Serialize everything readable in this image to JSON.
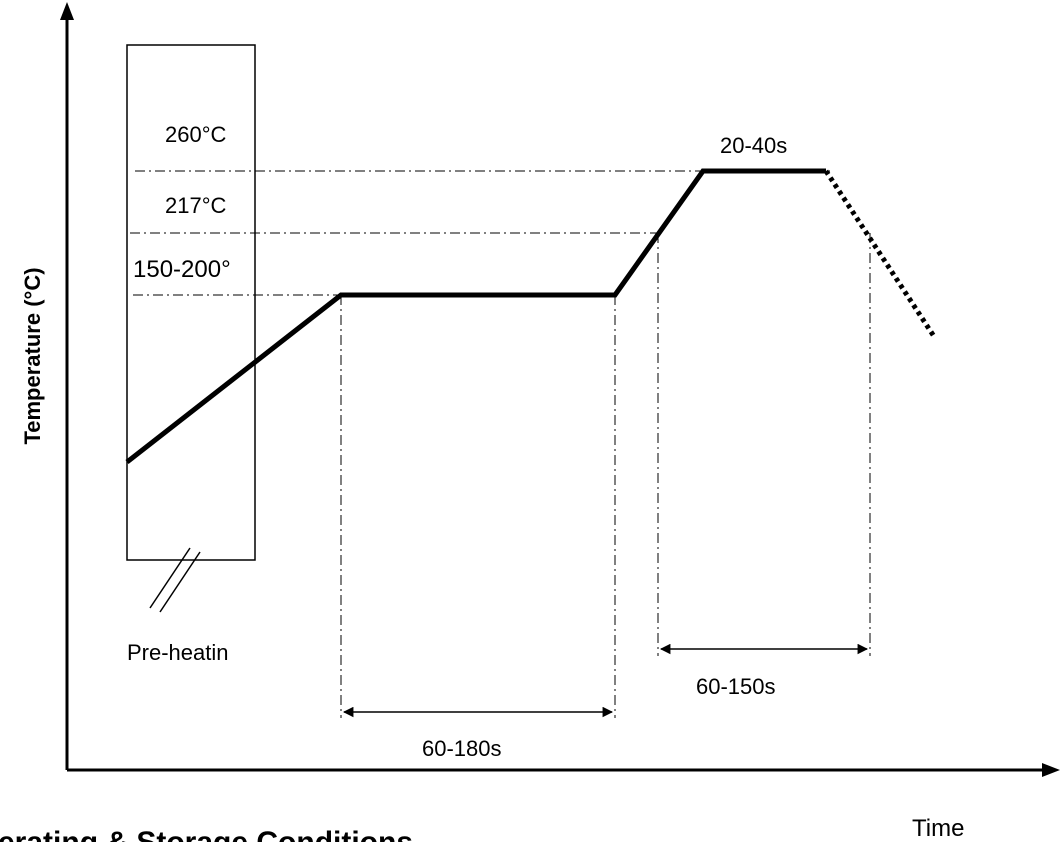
{
  "diagram": {
    "ylabel": "Temperature (°C)",
    "xlabel": "Time",
    "temp_labels": {
      "peak": "260°C",
      "liquidus": "217°C",
      "soak": "150-200°"
    },
    "durations": {
      "peak": "20-40s",
      "soak": "60-180s",
      "above_liquidus": "60-150s"
    },
    "preheat_label": "Pre-heatin",
    "footer_heading": "erating & Storage Conditions"
  }
}
